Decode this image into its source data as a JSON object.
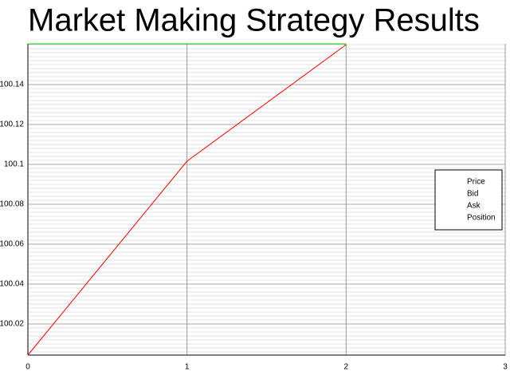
{
  "chart_data": {
    "type": "line",
    "title": "Market Making Strategy Results",
    "x": [
      0,
      1,
      2
    ],
    "series": [
      {
        "name": "Price",
        "color": "#ff0000",
        "values": [
          100.0044,
          100.1016,
          100.16
        ]
      },
      {
        "name": "Bid",
        "color": "#0000ff",
        "values": [
          null,
          null,
          null
        ]
      },
      {
        "name": "Ask",
        "color": "#00c000",
        "values": [
          100.1604,
          100.1604,
          100.1604
        ]
      },
      {
        "name": "Position",
        "color": "#000000",
        "values": [
          null,
          null,
          null
        ]
      }
    ],
    "xlim": [
      0,
      3
    ],
    "xticks": [
      0,
      1,
      2,
      3
    ],
    "ylim": [
      100.0044,
      100.1604
    ],
    "yticks": [
      100.02,
      100.04,
      100.06,
      100.08,
      100.1,
      100.12,
      100.14
    ],
    "grid": true,
    "legend": "right"
  }
}
